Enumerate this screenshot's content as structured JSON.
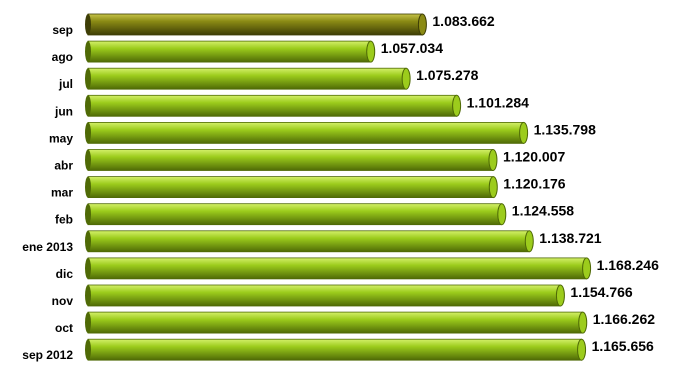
{
  "chart_data": {
    "type": "bar",
    "orientation": "horizontal",
    "categories": [
      "sep",
      "ago",
      "jul",
      "jun",
      "may",
      "abr",
      "mar",
      "feb",
      "ene 2013",
      "dic",
      "nov",
      "oct",
      "sep 2012"
    ],
    "values": [
      1083662,
      1057034,
      1075278,
      1101284,
      1135798,
      1120007,
      1120176,
      1124558,
      1138721,
      1168246,
      1154766,
      1166262,
      1165656
    ],
    "value_labels": [
      "1.083.662",
      "1.057.034",
      "1.075.278",
      "1.101.284",
      "1.135.798",
      "1.120.007",
      "1.120.176",
      "1.124.558",
      "1.138.721",
      "1.168.246",
      "1.154.766",
      "1.166.262",
      "1.165.656"
    ],
    "title": "",
    "xlabel": "",
    "ylabel": "",
    "xlim": [
      1000000,
      1170000
    ],
    "grid": false,
    "legend": "none",
    "colors": {
      "bar": "#9ccc1c",
      "bar_light": "#d4f06a",
      "bar_dark": "#4f6a06",
      "highlight_bar": "#8a8a14",
      "highlight_light": "#c6c44a",
      "highlight_dark": "#3e3e06"
    },
    "highlight_index": 0
  }
}
